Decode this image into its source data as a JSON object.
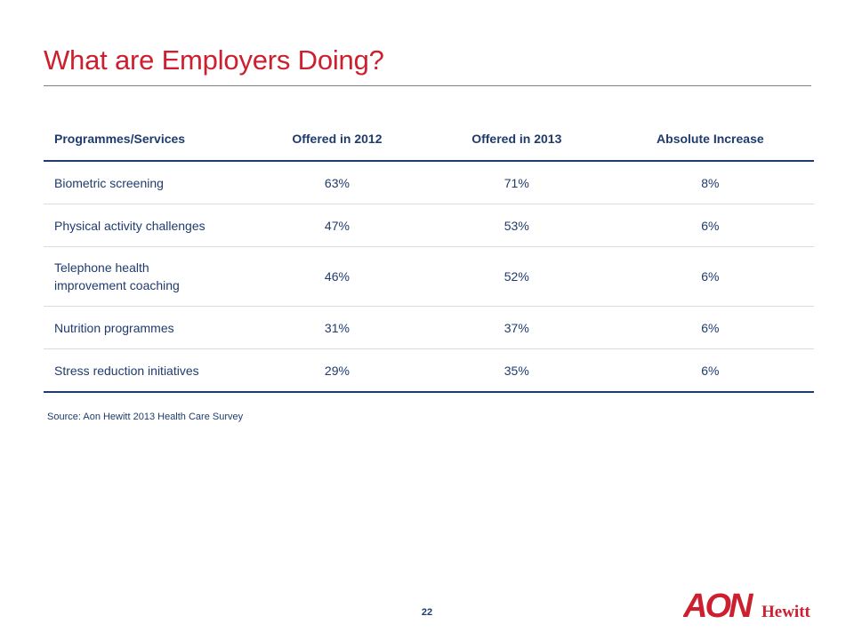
{
  "slide": {
    "title": "What are Employers Doing?",
    "source": "Source: Aon Hewitt 2013 Health Care Survey",
    "page_number": "22"
  },
  "table": {
    "headers": [
      "Programmes/Services",
      "Offered in 2012",
      "Offered in 2013",
      "Absolute Increase"
    ],
    "rows": [
      {
        "service": "Biometric screening",
        "y2012": "63%",
        "y2013": "71%",
        "increase": "8%"
      },
      {
        "service": "Physical activity challenges",
        "y2012": "47%",
        "y2013": "53%",
        "increase": "6%"
      },
      {
        "service_line1": "Telephone health",
        "service_line2": "improvement coaching",
        "y2012": "46%",
        "y2013": "52%",
        "increase": "6%"
      },
      {
        "service": "Nutrition programmes",
        "y2012": "31%",
        "y2013": "37%",
        "increase": "6%"
      },
      {
        "service": "Stress reduction initiatives",
        "y2012": "29%",
        "y2013": "35%",
        "increase": "6%"
      }
    ]
  },
  "logo": {
    "mark": "AON",
    "wordmark": "Hewitt",
    "color": "#cc1f2f"
  },
  "colors": {
    "title": "#cc1f2f",
    "table_text": "#1f3b6e",
    "rule": "#808080"
  }
}
